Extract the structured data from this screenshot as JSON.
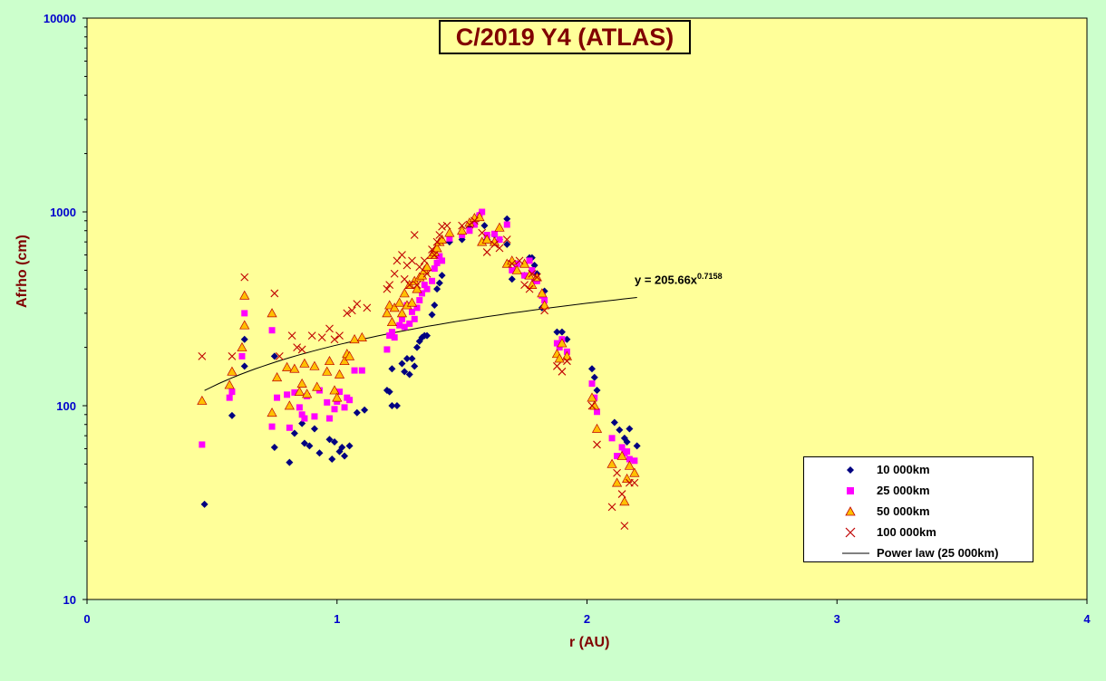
{
  "chart_data": {
    "type": "scatter",
    "title": "C/2019 Y4 (ATLAS)",
    "xlabel": "r (AU)",
    "ylabel": "Afrho (cm)",
    "xlim": [
      0,
      4
    ],
    "ylim": [
      10,
      10000
    ],
    "yscale": "log",
    "xticks": [
      "0",
      "1",
      "2",
      "3",
      "4"
    ],
    "yticks": [
      "10",
      "100",
      "1000",
      "10000"
    ],
    "legend_position": "bottom-right",
    "grid": false,
    "plot_background": "#ffff99",
    "page_background": "#ccffcc",
    "trend_equation": {
      "prefix": "y = 205.66x",
      "exponent": "0.7158"
    },
    "trendline": {
      "name": "Power law (25 000km)",
      "coefficient": 205.66,
      "exponent": 0.7158,
      "x_range": [
        0.47,
        2.2
      ]
    },
    "series": [
      {
        "name": "10 000km",
        "marker": "diamond",
        "color": "#000080",
        "x": [
          0.47,
          0.58,
          0.63,
          0.63,
          0.75,
          0.75,
          0.81,
          0.83,
          0.86,
          0.87,
          0.89,
          0.91,
          0.93,
          0.97,
          0.98,
          0.99,
          1.01,
          1.02,
          1.03,
          1.05,
          1.08,
          1.11,
          1.2,
          1.21,
          1.22,
          1.22,
          1.24,
          1.26,
          1.27,
          1.28,
          1.29,
          1.3,
          1.31,
          1.32,
          1.33,
          1.34,
          1.35,
          1.36,
          1.38,
          1.39,
          1.4,
          1.41,
          1.42,
          1.45,
          1.5,
          1.53,
          1.55,
          1.57,
          1.59,
          1.6,
          1.63,
          1.65,
          1.68,
          1.68,
          1.7,
          1.72,
          1.75,
          1.77,
          1.78,
          1.79,
          1.8,
          1.82,
          1.83,
          1.88,
          1.9,
          1.92,
          2.02,
          2.03,
          2.04,
          2.11,
          2.13,
          2.15,
          2.16,
          2.17,
          2.2
        ],
        "y": [
          31,
          89,
          160,
          220,
          61,
          180,
          51,
          72,
          81,
          64,
          62,
          76,
          57,
          67,
          53,
          65,
          58,
          61,
          55,
          62,
          92,
          95,
          120,
          118,
          155,
          100,
          100,
          165,
          150,
          175,
          145,
          175,
          160,
          200,
          215,
          225,
          230,
          230,
          295,
          330,
          400,
          430,
          470,
          700,
          720,
          830,
          880,
          970,
          850,
          720,
          760,
          720,
          920,
          680,
          450,
          540,
          470,
          580,
          580,
          530,
          480,
          320,
          390,
          240,
          240,
          220,
          155,
          140,
          120,
          82,
          75,
          68,
          65,
          76,
          62
        ]
      },
      {
        "name": "25 000km",
        "marker": "square",
        "color": "#ff00ff",
        "x": [
          0.46,
          0.57,
          0.58,
          0.62,
          0.63,
          0.74,
          0.74,
          0.76,
          0.8,
          0.81,
          0.83,
          0.85,
          0.86,
          0.87,
          0.88,
          0.91,
          0.93,
          0.96,
          0.97,
          0.99,
          1,
          1.01,
          1.03,
          1.04,
          1.05,
          1.07,
          1.1,
          1.2,
          1.21,
          1.22,
          1.23,
          1.25,
          1.26,
          1.27,
          1.28,
          1.29,
          1.3,
          1.31,
          1.32,
          1.33,
          1.34,
          1.35,
          1.36,
          1.38,
          1.39,
          1.4,
          1.41,
          1.42,
          1.45,
          1.5,
          1.53,
          1.55,
          1.57,
          1.58,
          1.6,
          1.63,
          1.65,
          1.68,
          1.7,
          1.72,
          1.75,
          1.77,
          1.78,
          1.79,
          1.8,
          1.82,
          1.83,
          1.88,
          1.89,
          1.9,
          1.92,
          2.02,
          2.03,
          2.04,
          2.1,
          2.12,
          2.14,
          2.15,
          2.16,
          2.17,
          2.19
        ],
        "y": [
          63,
          110,
          118,
          180,
          300,
          78,
          245,
          110,
          114,
          77,
          117,
          98,
          90,
          86,
          112,
          88,
          120,
          104,
          86,
          96,
          105,
          118,
          98,
          110,
          107,
          152,
          152,
          195,
          230,
          240,
          225,
          260,
          280,
          255,
          330,
          265,
          305,
          280,
          320,
          350,
          380,
          420,
          400,
          440,
          510,
          545,
          590,
          560,
          730,
          760,
          800,
          860,
          960,
          1000,
          760,
          770,
          720,
          860,
          500,
          540,
          470,
          560,
          500,
          440,
          440,
          370,
          350,
          210,
          200,
          220,
          190,
          130,
          110,
          93,
          68,
          55,
          61,
          57,
          58,
          53,
          52
        ]
      },
      {
        "name": "50 000km",
        "marker": "triangle",
        "color": "#ffc000",
        "x": [
          0.46,
          0.57,
          0.58,
          0.62,
          0.63,
          0.63,
          0.74,
          0.74,
          0.76,
          0.8,
          0.81,
          0.83,
          0.85,
          0.86,
          0.87,
          0.88,
          0.91,
          0.92,
          0.96,
          0.97,
          0.99,
          1,
          1.01,
          1.03,
          1.04,
          1.05,
          1.07,
          1.1,
          1.2,
          1.21,
          1.22,
          1.23,
          1.25,
          1.26,
          1.27,
          1.28,
          1.29,
          1.3,
          1.31,
          1.32,
          1.33,
          1.34,
          1.35,
          1.36,
          1.38,
          1.39,
          1.4,
          1.41,
          1.42,
          1.45,
          1.5,
          1.53,
          1.55,
          1.57,
          1.58,
          1.6,
          1.63,
          1.65,
          1.68,
          1.7,
          1.72,
          1.75,
          1.77,
          1.78,
          1.8,
          1.82,
          1.83,
          1.88,
          1.89,
          1.9,
          1.92,
          2.02,
          2.03,
          2.04,
          2.1,
          2.12,
          2.14,
          2.15,
          2.16,
          2.17,
          2.19
        ],
        "y": [
          106,
          128,
          150,
          200,
          260,
          370,
          92,
          300,
          140,
          158,
          100,
          155,
          118,
          130,
          165,
          115,
          160,
          125,
          150,
          170,
          120,
          110,
          145,
          170,
          185,
          180,
          220,
          225,
          300,
          330,
          270,
          320,
          340,
          300,
          380,
          330,
          420,
          340,
          440,
          400,
          460,
          470,
          500,
          520,
          600,
          620,
          650,
          700,
          720,
          780,
          800,
          880,
          930,
          940,
          700,
          720,
          700,
          830,
          540,
          560,
          500,
          540,
          470,
          420,
          460,
          380,
          330,
          185,
          175,
          210,
          180,
          110,
          100,
          76,
          50,
          40,
          55,
          32,
          42,
          49,
          45
        ]
      },
      {
        "name": "100 000km",
        "marker": "x",
        "color": "#c00000",
        "x": [
          0.46,
          0.58,
          0.63,
          0.75,
          0.77,
          0.82,
          0.84,
          0.86,
          0.9,
          0.94,
          0.97,
          0.99,
          1.01,
          1.04,
          1.06,
          1.08,
          1.12,
          1.2,
          1.21,
          1.23,
          1.24,
          1.26,
          1.27,
          1.28,
          1.29,
          1.3,
          1.31,
          1.32,
          1.33,
          1.35,
          1.36,
          1.38,
          1.39,
          1.4,
          1.41,
          1.42,
          1.44,
          1.5,
          1.53,
          1.55,
          1.58,
          1.6,
          1.63,
          1.65,
          1.68,
          1.7,
          1.73,
          1.75,
          1.77,
          1.78,
          1.8,
          1.83,
          1.88,
          1.9,
          1.92,
          2.02,
          2.04,
          2.1,
          2.12,
          2.14,
          2.15,
          2.17,
          2.19
        ],
        "y": [
          180,
          180,
          460,
          380,
          180,
          230,
          200,
          195,
          230,
          225,
          250,
          220,
          230,
          300,
          310,
          335,
          320,
          400,
          420,
          480,
          560,
          600,
          450,
          530,
          420,
          560,
          760,
          420,
          520,
          560,
          480,
          640,
          600,
          700,
          760,
          840,
          850,
          850,
          860,
          900,
          780,
          620,
          680,
          650,
          720,
          540,
          560,
          420,
          400,
          480,
          460,
          310,
          160,
          150,
          170,
          100,
          63,
          30,
          45,
          35,
          24,
          40,
          40
        ]
      }
    ]
  }
}
